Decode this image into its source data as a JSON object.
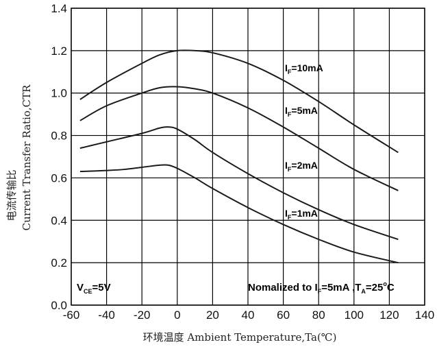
{
  "chart_data": {
    "type": "line",
    "title": "",
    "xlabel": "环境温度 Ambient Temperature,Ta(℃)",
    "ylabel_line1": "电流传输比",
    "ylabel_line2": "Current Transfer Ratio,CTR",
    "xlim": [
      -60,
      140
    ],
    "ylim": [
      0.0,
      1.4
    ],
    "x_ticks": [
      -60,
      -40,
      -20,
      0,
      20,
      40,
      60,
      80,
      100,
      120,
      140
    ],
    "y_ticks": [
      "0.0",
      "0.2",
      "0.4",
      "0.6",
      "0.8",
      "1.0",
      "1.2",
      "1.4"
    ],
    "grid": true,
    "series": [
      {
        "name": "10mA",
        "label_prefix": "I",
        "label_sub": "F",
        "label_rest": "=10mA",
        "x": [
          -55,
          -40,
          -20,
          -10,
          0,
          10,
          20,
          40,
          60,
          80,
          100,
          125
        ],
        "y": [
          0.97,
          1.05,
          1.14,
          1.18,
          1.2,
          1.2,
          1.19,
          1.14,
          1.06,
          0.96,
          0.85,
          0.72
        ]
      },
      {
        "name": "5mA",
        "label_prefix": "I",
        "label_sub": "F",
        "label_rest": "=5mA",
        "x": [
          -55,
          -40,
          -20,
          -10,
          0,
          10,
          20,
          40,
          60,
          80,
          100,
          125
        ],
        "y": [
          0.87,
          0.94,
          1.0,
          1.025,
          1.03,
          1.02,
          1.0,
          0.93,
          0.84,
          0.74,
          0.64,
          0.54
        ]
      },
      {
        "name": "2mA",
        "label_prefix": "I",
        "label_sub": "F",
        "label_rest": "=2mA",
        "x": [
          -55,
          -40,
          -20,
          -10,
          -5,
          0,
          10,
          20,
          40,
          60,
          80,
          100,
          125
        ],
        "y": [
          0.74,
          0.77,
          0.81,
          0.835,
          0.84,
          0.83,
          0.78,
          0.72,
          0.62,
          0.53,
          0.45,
          0.38,
          0.31
        ]
      },
      {
        "name": "1mA",
        "label_prefix": "I",
        "label_sub": "F",
        "label_rest": "=1mA",
        "x": [
          -55,
          -40,
          -30,
          -20,
          -10,
          -5,
          0,
          10,
          20,
          40,
          60,
          80,
          100,
          125
        ],
        "y": [
          0.63,
          0.635,
          0.64,
          0.65,
          0.66,
          0.66,
          0.645,
          0.6,
          0.55,
          0.46,
          0.38,
          0.31,
          0.25,
          0.2
        ]
      }
    ],
    "annotations": {
      "vce_prefix": "V",
      "vce_sub": "CE",
      "vce_rest": "=5V",
      "norm_text1": "Nomalized to I",
      "norm_sub1": "F",
      "norm_text2": "=5mA ,T",
      "norm_sub2": "A",
      "norm_text3": "=25",
      "norm_sup": "o",
      "norm_text4": "C"
    }
  }
}
